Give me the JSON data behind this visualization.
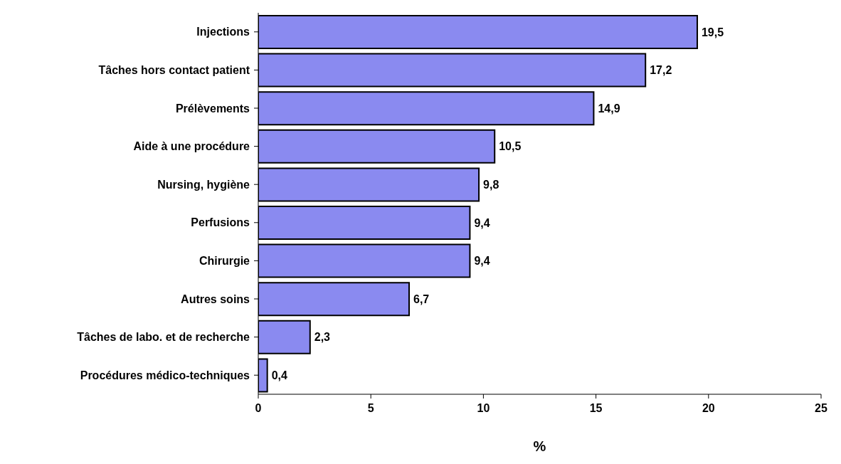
{
  "chart_data": {
    "type": "bar",
    "orientation": "horizontal",
    "xlabel": "%",
    "categories": [
      "Injections",
      "Tâches hors contact patient",
      "Prélèvements",
      "Aide à une procédure",
      "Nursing, hygiène",
      "Perfusions",
      "Chirurgie",
      "Autres soins",
      "Tâches de labo. et de recherche",
      "Procédures médico-techniques"
    ],
    "values": [
      19.5,
      17.2,
      14.9,
      10.5,
      9.8,
      9.4,
      9.4,
      6.7,
      2.3,
      0.4
    ],
    "value_labels": [
      "19,5",
      "17,2",
      "14,9",
      "10,5",
      "9,8",
      "9,4",
      "9,4",
      "6,7",
      "2,3",
      "0,4"
    ],
    "color": "#8a8af0",
    "xlim": [
      0,
      25
    ],
    "xticks": [
      0,
      5,
      10,
      15,
      20,
      25
    ],
    "grid": false,
    "legend": false
  }
}
